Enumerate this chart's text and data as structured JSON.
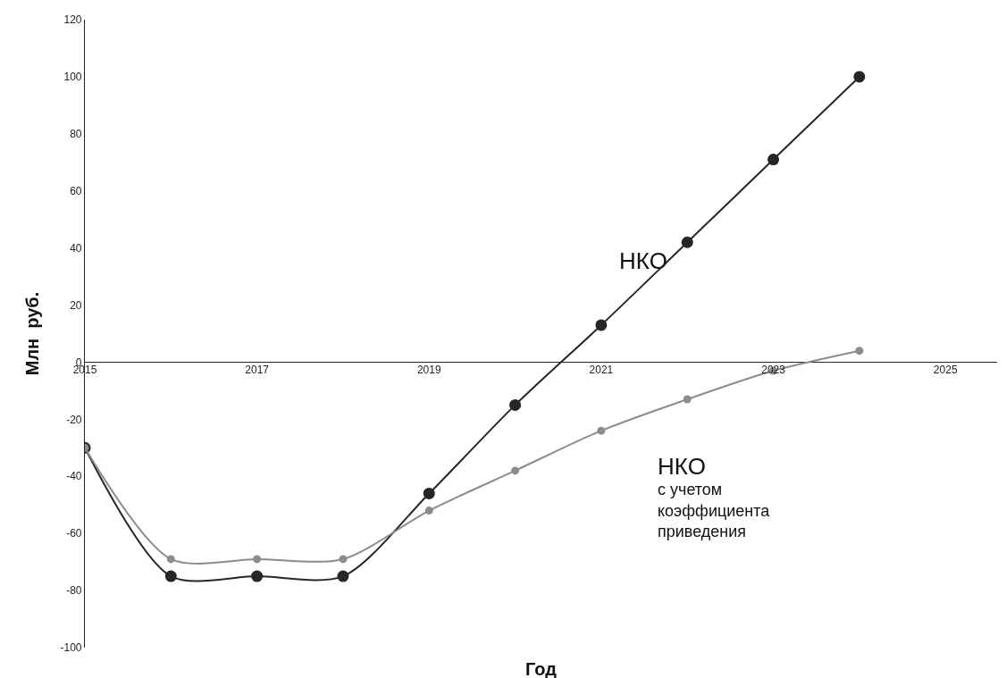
{
  "chart_data": {
    "type": "line",
    "xlabel": "Год",
    "ylabel": "Млн  руб.",
    "x": [
      2015,
      2016,
      2017,
      2018,
      2019,
      2020,
      2021,
      2022,
      2023,
      2024
    ],
    "series": [
      {
        "name": "НКО",
        "color": "#262626",
        "values": [
          -30,
          -75,
          -75,
          -75,
          -46,
          -15,
          13,
          42,
          71,
          100
        ]
      },
      {
        "name": "НКО\nс учетом\nкоэффициента\nприведения",
        "color": "#8c8c8c",
        "values": [
          -30,
          -69,
          -69,
          -69,
          -52,
          -38,
          -24,
          -13,
          -3,
          4
        ]
      }
    ],
    "xlim": [
      2015,
      2025.6
    ],
    "xticks": [
      2015,
      2017,
      2019,
      2021,
      2023,
      2025
    ],
    "ylim": [
      -100,
      120
    ],
    "yticks": [
      -100,
      -80,
      -60,
      -40,
      -20,
      0,
      20,
      40,
      60,
      80,
      100,
      120
    ],
    "marker": "circle",
    "line_style": "solid",
    "legend": false
  }
}
